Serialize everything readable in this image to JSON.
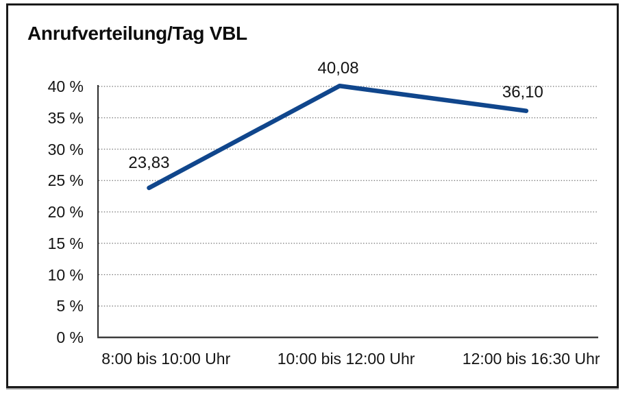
{
  "chart_data": {
    "type": "line",
    "title": "Anrufverteilung/Tag VBL",
    "categories": [
      "8:00 bis 10:00 Uhr",
      "10:00 bis 12:00 Uhr",
      "12:00 bis 16:30 Uhr"
    ],
    "values": [
      23.83,
      40.08,
      36.1
    ],
    "data_labels": [
      "23,83",
      "40,08",
      "36,10"
    ],
    "xlabel": "",
    "ylabel": "",
    "ylim": [
      0,
      40
    ],
    "y_ticks": {
      "values": [
        0,
        5,
        10,
        15,
        20,
        25,
        30,
        35,
        40
      ],
      "labels": [
        "0 %",
        "5 %",
        "10 %",
        "15 %",
        "20 %",
        "25 %",
        "30 %",
        "35 %",
        "40 %"
      ]
    },
    "grid": "horizontal dotted",
    "legend": "none",
    "colors": {
      "line": "#10468c",
      "grid": "#6e6e6e",
      "y_axis": "#2b2b2b",
      "x_axis": "#3c3c3c",
      "text": "#141414",
      "frame_border": "#1a1a1a",
      "background": "#ffffff"
    }
  }
}
